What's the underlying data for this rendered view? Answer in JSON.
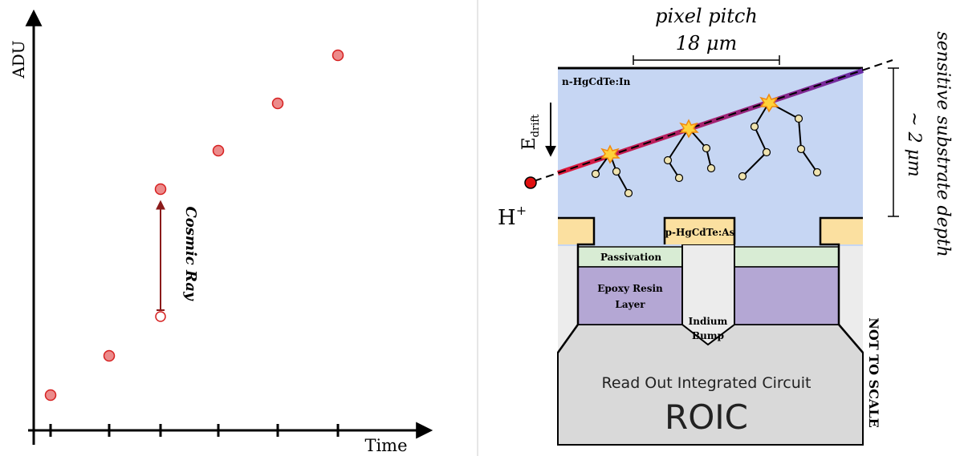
{
  "left_panel": {
    "y_label": "ADU",
    "x_label": "Time",
    "annotation": "Cosmic Ray"
  },
  "right_panel": {
    "pixel_pitch": {
      "label": "pixel pitch",
      "value": "18 μm"
    },
    "depth": {
      "label": "sensitive substrate depth",
      "value": "~ 2 μm"
    },
    "e_field": {
      "symbol": "E",
      "subscript": "drift"
    },
    "particle": {
      "symbol": "H",
      "superscript": "+"
    },
    "layers": {
      "absorber": "n-HgCdTe:In",
      "implant": "p-HgCdTe:As",
      "passivation": "Passivation",
      "epoxy": [
        "Epoxy Resin",
        "Layer"
      ],
      "bump": [
        "Indium",
        "Bump"
      ]
    },
    "roic": {
      "label": "Read Out Integrated Circuit",
      "name": "ROIC"
    },
    "note": "NOT TO SCALE"
  }
}
